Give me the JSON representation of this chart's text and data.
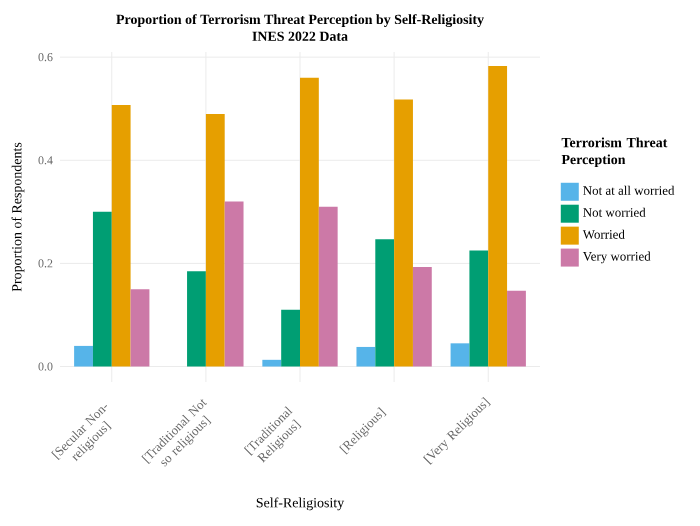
{
  "chart_data": {
    "type": "bar",
    "title": "Proportion of Terrorism Threat Perception by Self-Religiosity",
    "subtitle": "INES 2022 Data",
    "xlabel": "Self-Religiosity",
    "ylabel": "Proportion of Respondents",
    "legend_title": "Terrorism Threat Perception",
    "categories": [
      "[Secular Non-religious]",
      "[Traditional Not so religious]",
      "[Traditional Religious]",
      "[Religious]",
      "[Very Religious]"
    ],
    "series": [
      {
        "name": "Not at all worried",
        "color": "#56b4e9",
        "values": [
          0.04,
          null,
          0.013,
          0.038,
          0.045
        ]
      },
      {
        "name": "Not worried",
        "color": "#009e73",
        "values": [
          0.3,
          0.185,
          0.11,
          0.247,
          0.225
        ]
      },
      {
        "name": "Worried",
        "color": "#e69f00",
        "values": [
          0.507,
          0.49,
          0.56,
          0.518,
          0.583
        ]
      },
      {
        "name": "Very worried",
        "color": "#cc79a7",
        "values": [
          0.15,
          0.32,
          0.31,
          0.193,
          0.147
        ]
      }
    ],
    "ylim": [
      -0.03,
      0.61
    ],
    "yticks": [
      {
        "value": 0,
        "label": "0.0"
      },
      {
        "value": 0.2,
        "label": "0.2"
      },
      {
        "value": 0.4,
        "label": "0.4"
      },
      {
        "value": 0.6,
        "label": "0.6"
      }
    ],
    "grid": true,
    "legend": "right"
  }
}
